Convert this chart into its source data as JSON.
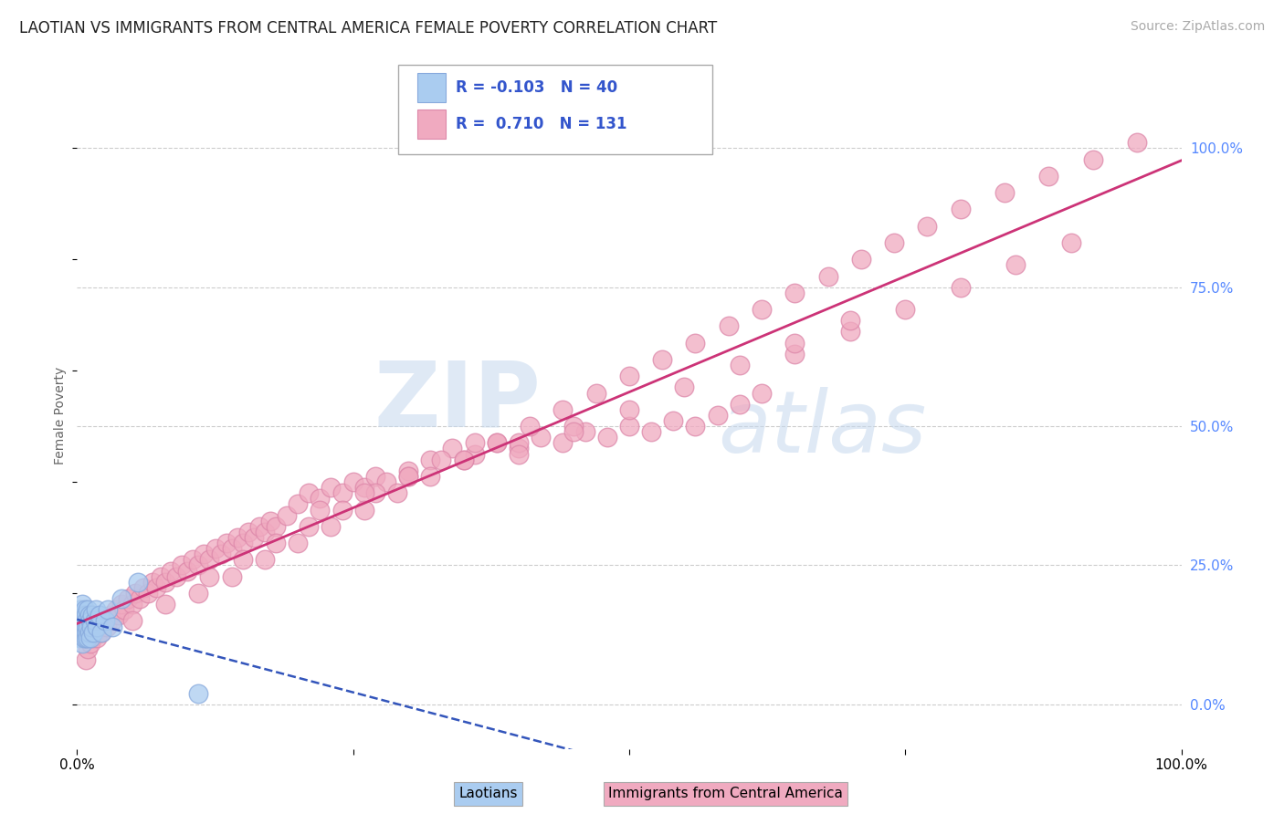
{
  "title": "LAOTIAN VS IMMIGRANTS FROM CENTRAL AMERICA FEMALE POVERTY CORRELATION CHART",
  "source": "Source: ZipAtlas.com",
  "ylabel": "Female Poverty",
  "xlim": [
    0,
    1
  ],
  "ylim": [
    -0.08,
    1.12
  ],
  "legend_labels": [
    "Laotians",
    "Immigrants from Central America"
  ],
  "legend_R": [
    -0.103,
    0.71
  ],
  "legend_N": [
    40,
    131
  ],
  "laotian_color": "#aaccf0",
  "central_america_color": "#f0aac0",
  "laotian_edge_color": "#88aadd",
  "central_america_edge_color": "#dd88aa",
  "laotian_line_color": "#3355bb",
  "central_america_line_color": "#cc3377",
  "background_color": "#ffffff",
  "grid_color": "#cccccc",
  "right_tick_color": "#5588ff",
  "laotian_x": [
    0.002,
    0.003,
    0.003,
    0.004,
    0.004,
    0.005,
    0.005,
    0.005,
    0.006,
    0.006,
    0.006,
    0.007,
    0.007,
    0.007,
    0.008,
    0.008,
    0.008,
    0.009,
    0.009,
    0.01,
    0.01,
    0.01,
    0.011,
    0.011,
    0.012,
    0.012,
    0.013,
    0.014,
    0.015,
    0.016,
    0.017,
    0.018,
    0.02,
    0.022,
    0.025,
    0.028,
    0.032,
    0.04,
    0.055,
    0.11
  ],
  "laotian_y": [
    0.14,
    0.17,
    0.12,
    0.16,
    0.13,
    0.18,
    0.15,
    0.11,
    0.16,
    0.14,
    0.12,
    0.15,
    0.13,
    0.17,
    0.14,
    0.12,
    0.16,
    0.15,
    0.13,
    0.17,
    0.14,
    0.12,
    0.16,
    0.13,
    0.15,
    0.12,
    0.14,
    0.16,
    0.13,
    0.15,
    0.17,
    0.14,
    0.16,
    0.13,
    0.15,
    0.17,
    0.14,
    0.19,
    0.22,
    0.02
  ],
  "central_america_x": [
    0.008,
    0.01,
    0.012,
    0.014,
    0.016,
    0.018,
    0.02,
    0.022,
    0.025,
    0.027,
    0.03,
    0.032,
    0.035,
    0.038,
    0.04,
    0.043,
    0.046,
    0.05,
    0.053,
    0.057,
    0.06,
    0.064,
    0.068,
    0.072,
    0.076,
    0.08,
    0.085,
    0.09,
    0.095,
    0.1,
    0.105,
    0.11,
    0.115,
    0.12,
    0.125,
    0.13,
    0.135,
    0.14,
    0.145,
    0.15,
    0.155,
    0.16,
    0.165,
    0.17,
    0.175,
    0.18,
    0.19,
    0.2,
    0.21,
    0.22,
    0.23,
    0.24,
    0.25,
    0.26,
    0.27,
    0.28,
    0.3,
    0.32,
    0.34,
    0.36,
    0.38,
    0.4,
    0.42,
    0.44,
    0.46,
    0.48,
    0.5,
    0.52,
    0.54,
    0.56,
    0.58,
    0.6,
    0.62,
    0.12,
    0.15,
    0.18,
    0.21,
    0.24,
    0.27,
    0.3,
    0.33,
    0.36,
    0.22,
    0.26,
    0.3,
    0.35,
    0.4,
    0.45,
    0.05,
    0.08,
    0.11,
    0.14,
    0.17,
    0.2,
    0.23,
    0.26,
    0.29,
    0.32,
    0.35,
    0.38,
    0.41,
    0.44,
    0.47,
    0.5,
    0.53,
    0.56,
    0.59,
    0.62,
    0.65,
    0.68,
    0.71,
    0.74,
    0.77,
    0.8,
    0.84,
    0.88,
    0.92,
    0.96,
    0.65,
    0.7,
    0.75,
    0.8,
    0.85,
    0.9,
    0.55,
    0.6,
    0.65,
    0.7,
    0.4,
    0.45,
    0.5
  ],
  "central_america_y": [
    0.08,
    0.1,
    0.11,
    0.12,
    0.13,
    0.12,
    0.14,
    0.13,
    0.15,
    0.14,
    0.16,
    0.15,
    0.17,
    0.16,
    0.18,
    0.17,
    0.19,
    0.18,
    0.2,
    0.19,
    0.21,
    0.2,
    0.22,
    0.21,
    0.23,
    0.22,
    0.24,
    0.23,
    0.25,
    0.24,
    0.26,
    0.25,
    0.27,
    0.26,
    0.28,
    0.27,
    0.29,
    0.28,
    0.3,
    0.29,
    0.31,
    0.3,
    0.32,
    0.31,
    0.33,
    0.32,
    0.34,
    0.36,
    0.38,
    0.37,
    0.39,
    0.38,
    0.4,
    0.39,
    0.41,
    0.4,
    0.42,
    0.44,
    0.46,
    0.45,
    0.47,
    0.46,
    0.48,
    0.47,
    0.49,
    0.48,
    0.5,
    0.49,
    0.51,
    0.5,
    0.52,
    0.54,
    0.56,
    0.23,
    0.26,
    0.29,
    0.32,
    0.35,
    0.38,
    0.41,
    0.44,
    0.47,
    0.35,
    0.38,
    0.41,
    0.44,
    0.47,
    0.5,
    0.15,
    0.18,
    0.2,
    0.23,
    0.26,
    0.29,
    0.32,
    0.35,
    0.38,
    0.41,
    0.44,
    0.47,
    0.5,
    0.53,
    0.56,
    0.59,
    0.62,
    0.65,
    0.68,
    0.71,
    0.74,
    0.77,
    0.8,
    0.83,
    0.86,
    0.89,
    0.92,
    0.95,
    0.98,
    1.01,
    0.63,
    0.67,
    0.71,
    0.75,
    0.79,
    0.83,
    0.57,
    0.61,
    0.65,
    0.69,
    0.45,
    0.49,
    0.53
  ]
}
